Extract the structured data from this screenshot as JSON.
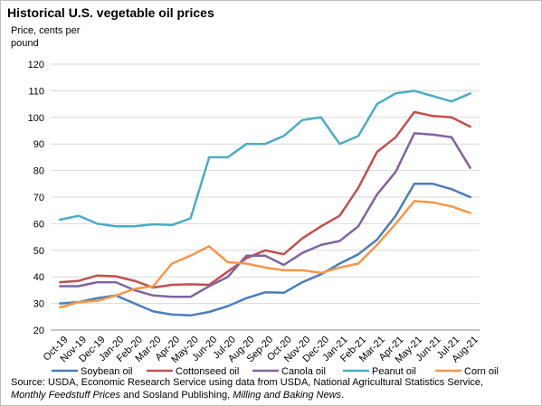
{
  "chart_data": {
    "type": "line",
    "title": "Historical U.S. vegetable oil prices",
    "ylabel_lines": [
      "Price, cents per",
      "pound"
    ],
    "ylim": [
      20,
      120
    ],
    "yticks": [
      20,
      30,
      40,
      50,
      60,
      70,
      80,
      90,
      100,
      110,
      120
    ],
    "grid": "horizontal",
    "legend_position": "bottom",
    "categories": [
      "Oct-19",
      "Nov-19",
      "Dec-19",
      "Jan-20",
      "Feb-20",
      "Mar-20",
      "Apr-20",
      "May-20",
      "Jun-20",
      "Jul-20",
      "Aug-20",
      "Sep-20",
      "Oct-20",
      "Nov-20",
      "Dec-20",
      "Jan-21",
      "Feb-21",
      "Mar-21",
      "Apr-21",
      "May-21",
      "Jun-21",
      "Jul-21",
      "Aug-21"
    ],
    "series": [
      {
        "name": "Soybean oil",
        "color": "#4a7ebb",
        "values": [
          30.0,
          30.5,
          32.0,
          33.0,
          30.0,
          27.0,
          25.8,
          25.5,
          26.8,
          29.0,
          32.0,
          34.2,
          34.0,
          38.0,
          41.0,
          45.0,
          48.5,
          54.0,
          63.0,
          75.0,
          75.0,
          73.0,
          70.0
        ]
      },
      {
        "name": "Cottonseed oil",
        "color": "#c0504d",
        "values": [
          38.0,
          38.5,
          40.5,
          40.2,
          38.5,
          36.0,
          37.0,
          37.2,
          37.0,
          42.0,
          47.0,
          50.0,
          48.5,
          54.5,
          59.0,
          63.0,
          73.5,
          87.0,
          92.5,
          102.0,
          100.5,
          100.0,
          96.5
        ]
      },
      {
        "name": "Canola oil",
        "color": "#8064a2",
        "values": [
          36.5,
          36.5,
          38.0,
          38.0,
          35.0,
          33.0,
          32.5,
          32.5,
          36.5,
          40.0,
          48.0,
          48.0,
          44.5,
          49.0,
          52.0,
          53.5,
          59.0,
          71.0,
          79.5,
          94.0,
          93.5,
          92.5,
          81.0
        ]
      },
      {
        "name": "Peanut oil",
        "color": "#4bacc6",
        "values": [
          61.5,
          63.0,
          60.0,
          59.0,
          59.0,
          59.8,
          59.5,
          62.0,
          85.0,
          85.0,
          90.0,
          90.0,
          93.0,
          99.0,
          100.0,
          90.0,
          93.0,
          105.0,
          109.0,
          110.0,
          108.0,
          106.0,
          109.0
        ]
      },
      {
        "name": "Corn oil",
        "color": "#f79646",
        "values": [
          28.5,
          30.5,
          31.0,
          33.0,
          35.5,
          36.5,
          45.0,
          48.0,
          51.5,
          45.5,
          45.0,
          43.5,
          42.5,
          42.5,
          41.5,
          43.5,
          45.0,
          52.0,
          60.0,
          68.5,
          68.0,
          66.5,
          64.0
        ]
      }
    ]
  },
  "source": {
    "prefix": "Source: USDA, Economic Research Service using data from USDA, National Agricultural Statistics Service,",
    "italic1": "Monthly Feedstuff Prices",
    "middle": " and Sosland Publishing, ",
    "italic2": "Milling and Baking News",
    "suffix": "."
  }
}
